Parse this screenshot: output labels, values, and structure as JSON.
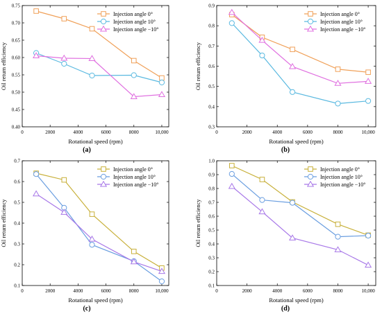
{
  "chart_data": [
    {
      "type": "line",
      "panel_label": "(a)",
      "xlabel": "Rotational speed (rpm)",
      "ylabel": "Oil return efficiency",
      "xlim": [
        0,
        10500
      ],
      "ylim": [
        0.4,
        0.75
      ],
      "x_ticks": [
        0,
        2000,
        4000,
        6000,
        8000,
        10000
      ],
      "x_tick_labels": [
        "0",
        "2000",
        "4000",
        "6000",
        "8000",
        "10,000"
      ],
      "y_ticks": [
        0.4,
        0.45,
        0.5,
        0.55,
        0.6,
        0.65,
        0.7,
        0.75
      ],
      "y_tick_labels": [
        "0.40",
        "0.45",
        "0.50",
        "0.55",
        "0.60",
        "0.65",
        "0.70",
        "0.75"
      ],
      "legend_position": "top-right",
      "x": [
        1000,
        3000,
        5000,
        8000,
        10000
      ],
      "series": [
        {
          "name": "Injection angle 0°",
          "marker": "square",
          "color": "#f0a058",
          "values": [
            0.734,
            0.712,
            0.683,
            0.591,
            0.541
          ]
        },
        {
          "name": "Injection angle 10°",
          "marker": "circle",
          "color": "#5ab9e0",
          "values": [
            0.613,
            0.582,
            0.548,
            0.549,
            0.528
          ]
        },
        {
          "name": "Injection angle −10°",
          "marker": "triangle",
          "color": "#e070e0",
          "values": [
            0.605,
            0.598,
            0.597,
            0.487,
            0.493
          ]
        }
      ]
    },
    {
      "type": "line",
      "panel_label": "(b)",
      "xlabel": "Rotational speed (rpm)",
      "ylabel": "Oil return efficiency",
      "xlim": [
        0,
        10500
      ],
      "ylim": [
        0.3,
        0.9
      ],
      "x_ticks": [
        0,
        2000,
        4000,
        6000,
        8000,
        10000
      ],
      "x_tick_labels": [
        "0",
        "2000",
        "4000",
        "6000",
        "8000",
        "10,000"
      ],
      "y_ticks": [
        0.3,
        0.4,
        0.5,
        0.6,
        0.7,
        0.8,
        0.9
      ],
      "y_tick_labels": [
        "0.3",
        "0.4",
        "0.5",
        "0.6",
        "0.7",
        "0.8",
        "0.9"
      ],
      "legend_position": "top-right",
      "x": [
        1000,
        3000,
        5000,
        8000,
        10000
      ],
      "series": [
        {
          "name": "Injection angle 0°",
          "marker": "square",
          "color": "#f0a058",
          "values": [
            0.855,
            0.743,
            0.683,
            0.585,
            0.57
          ]
        },
        {
          "name": "Injection angle 10°",
          "marker": "circle",
          "color": "#5ab9e0",
          "values": [
            0.813,
            0.653,
            0.472,
            0.415,
            0.428
          ]
        },
        {
          "name": "Injection angle −10°",
          "marker": "triangle",
          "color": "#e070e0",
          "values": [
            0.866,
            0.728,
            0.598,
            0.515,
            0.525
          ]
        }
      ]
    },
    {
      "type": "line",
      "panel_label": "(c)",
      "xlabel": "Rotational speed (rpm)",
      "ylabel": "Oil return efficiency",
      "xlim": [
        0,
        10500
      ],
      "ylim": [
        0.1,
        0.7
      ],
      "x_ticks": [
        0,
        2000,
        4000,
        6000,
        8000,
        10000
      ],
      "x_tick_labels": [
        "0",
        "2000",
        "4000",
        "6000",
        "8000",
        "10,000"
      ],
      "y_ticks": [
        0.1,
        0.2,
        0.3,
        0.4,
        0.5,
        0.6,
        0.7
      ],
      "y_tick_labels": [
        "0.1",
        "0.2",
        "0.3",
        "0.4",
        "0.5",
        "0.6",
        "0.7"
      ],
      "legend_position": "top-right",
      "x": [
        1000,
        3000,
        5000,
        8000,
        10000
      ],
      "series": [
        {
          "name": "Injection angle 0°",
          "marker": "square",
          "color": "#c8b03a",
          "values": [
            0.64,
            0.608,
            0.443,
            0.264,
            0.184
          ]
        },
        {
          "name": "Injection angle 10°",
          "marker": "circle",
          "color": "#6a9ee0",
          "values": [
            0.636,
            0.474,
            0.296,
            0.217,
            0.12
          ]
        },
        {
          "name": "Injection angle −10°",
          "marker": "triangle",
          "color": "#a878e8",
          "values": [
            0.541,
            0.452,
            0.323,
            0.214,
            0.168
          ]
        }
      ]
    },
    {
      "type": "line",
      "panel_label": "(d)",
      "xlabel": "Rotational speed (rpm)",
      "ylabel": "Oil return efficiency",
      "xlim": [
        0,
        10500
      ],
      "ylim": [
        0.1,
        1.0
      ],
      "x_ticks": [
        0,
        2000,
        4000,
        6000,
        8000,
        10000
      ],
      "x_tick_labels": [
        "0",
        "2000",
        "4000",
        "6000",
        "8000",
        "10,000"
      ],
      "y_ticks": [
        0.1,
        0.2,
        0.3,
        0.4,
        0.5,
        0.6,
        0.7,
        0.8,
        0.9,
        1.0
      ],
      "y_tick_labels": [
        "0.1",
        "0.2",
        "0.3",
        "0.4",
        "0.5",
        "0.6",
        "0.7",
        "0.8",
        "0.9",
        "1.0"
      ],
      "legend_position": "top-right",
      "x": [
        1000,
        3000,
        5000,
        8000,
        10000
      ],
      "series": [
        {
          "name": "Injection angle 0°",
          "marker": "square",
          "color": "#c8b03a",
          "values": [
            0.965,
            0.865,
            0.703,
            0.542,
            0.463
          ]
        },
        {
          "name": "Injection angle 10°",
          "marker": "circle",
          "color": "#6a9ee0",
          "values": [
            0.905,
            0.717,
            0.697,
            0.452,
            0.46
          ]
        },
        {
          "name": "Injection angle −10°",
          "marker": "triangle",
          "color": "#a878e8",
          "values": [
            0.815,
            0.632,
            0.443,
            0.358,
            0.247
          ]
        }
      ]
    }
  ]
}
